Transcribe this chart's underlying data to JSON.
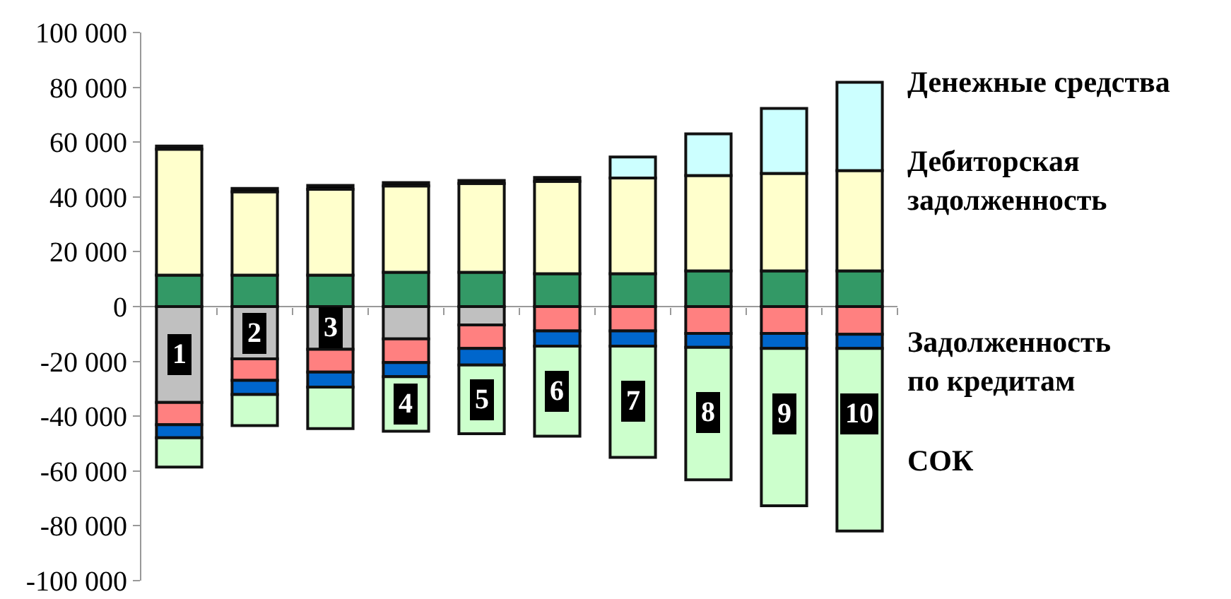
{
  "chart_data": {
    "type": "bar",
    "stacked": true,
    "grid": false,
    "categories": [
      "1",
      "2",
      "3",
      "4",
      "5",
      "6",
      "7",
      "8",
      "9",
      "10"
    ],
    "series": [
      {
        "color": "#339966",
        "values": [
          11500,
          11500,
          11500,
          12500,
          12500,
          12000,
          12000,
          13000,
          13000,
          13000
        ]
      },
      {
        "name": "Дебиторская задолженность",
        "color": "#ffffcc",
        "values": [
          45900,
          30400,
          31300,
          31500,
          32400,
          33700,
          34900,
          34800,
          35600,
          36600
        ]
      },
      {
        "color": "#000000",
        "values": [
          1200,
          1200,
          1400,
          1200,
          1100,
          1400,
          null,
          null,
          null,
          null
        ]
      },
      {
        "name": "Денежные средства",
        "color": "#ccffff",
        "values": [
          null,
          null,
          null,
          null,
          null,
          null,
          7700,
          15200,
          23700,
          32200
        ]
      },
      {
        "color": "#c0c0c0",
        "values": [
          -35000,
          -19100,
          -15600,
          -11800,
          -6700,
          null,
          null,
          null,
          null,
          null
        ]
      },
      {
        "name": "Задолженность по кредитам",
        "color": "#ff8080",
        "values": [
          -8100,
          -7800,
          -8300,
          -8600,
          -8600,
          -8900,
          -8900,
          -9800,
          -9800,
          -10100
        ]
      },
      {
        "color": "#0066cc",
        "values": [
          -4800,
          -5200,
          -5500,
          -5200,
          -6000,
          -5500,
          -5500,
          -5100,
          -5500,
          -5200
        ]
      },
      {
        "name": "СОК",
        "color": "#ccffcc",
        "values": [
          -10700,
          -11300,
          -15100,
          -19900,
          -25100,
          -32900,
          -40600,
          -48300,
          -57400,
          -66600
        ]
      }
    ],
    "ylim": [
      -100000,
      100000
    ],
    "yticks": [
      {
        "value": -100000,
        "label": "-100 000"
      },
      {
        "value": -80000,
        "label": "-80 000"
      },
      {
        "value": -60000,
        "label": "-60 000"
      },
      {
        "value": -40000,
        "label": "-40 000"
      },
      {
        "value": -20000,
        "label": "-20 000"
      },
      {
        "value": 0,
        "label": "0"
      },
      {
        "value": 20000,
        "label": "20 000"
      },
      {
        "value": 40000,
        "label": "40 000"
      },
      {
        "value": 60000,
        "label": "60 000"
      },
      {
        "value": 80000,
        "label": "80 000"
      },
      {
        "value": 100000,
        "label": "100 000"
      }
    ]
  }
}
